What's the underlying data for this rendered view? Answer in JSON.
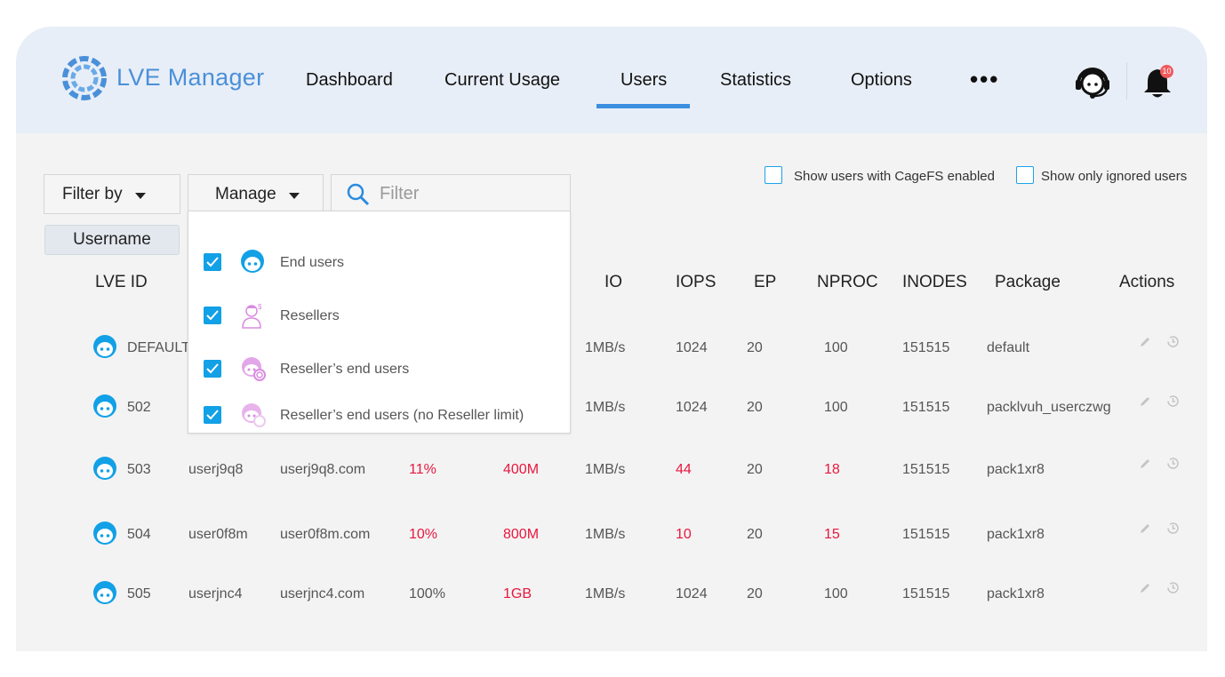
{
  "app": {
    "title": "LVE Manager"
  },
  "nav": {
    "items": [
      "Dashboard",
      "Current Usage",
      "Users",
      "Statistics",
      "Options"
    ],
    "active": "Users",
    "more": "•••"
  },
  "header": {
    "notifications_count": "10"
  },
  "colors": {
    "accent": "#3b8ee0",
    "checkbox": "#12a0e6",
    "alert": "#e8173f",
    "reseller_icon": "#d98be0"
  },
  "toolbar": {
    "filter_by": "Filter by",
    "manage": "Manage",
    "filter_placeholder": "Filter",
    "username_tag": "Username"
  },
  "options": {
    "cagefs": "Show users with CageFS enabled",
    "ignored": "Show only ignored users"
  },
  "manage_menu": {
    "items": [
      {
        "label": "End users",
        "checked": true,
        "icon": "end-user-icon"
      },
      {
        "label": "Resellers",
        "checked": true,
        "icon": "reseller-icon"
      },
      {
        "label": "Reseller’s end users",
        "checked": true,
        "icon": "reseller-end-user-icon"
      },
      {
        "label": "Reseller’s end users (no Reseller limit)",
        "checked": true,
        "icon": "reseller-end-user-nolimit-icon"
      }
    ]
  },
  "table": {
    "columns": {
      "lve_id": "LVE ID",
      "io": "IO",
      "iops": "IOPS",
      "ep": "EP",
      "nproc": "NPROC",
      "inodes": "INODES",
      "package": "Package",
      "actions": "Actions"
    },
    "rows": [
      {
        "id": "DEFAULT",
        "username": "",
        "domain": "",
        "cpu": "",
        "mem": "",
        "io": "1MB/s",
        "iops": "1024",
        "ep": "20",
        "nproc": "100",
        "inodes": "151515",
        "package": "default"
      },
      {
        "id": "502",
        "username": "",
        "domain": "",
        "cpu": "",
        "mem": "",
        "io": "1MB/s",
        "iops": "1024",
        "ep": "20",
        "nproc": "100",
        "inodes": "151515",
        "package": "packlvuh_userczwg"
      },
      {
        "id": "503",
        "username": "userj9q8",
        "domain": "userj9q8.com",
        "cpu": "11%",
        "mem": "400M",
        "io": "1MB/s",
        "iops": "44",
        "ep": "20",
        "nproc": "18",
        "inodes": "151515",
        "package": "pack1xr8"
      },
      {
        "id": "504",
        "username": "user0f8m",
        "domain": "user0f8m.com",
        "cpu": "10%",
        "mem": "800M",
        "io": "1MB/s",
        "iops": "10",
        "ep": "20",
        "nproc": "15",
        "inodes": "151515",
        "package": "pack1xr8"
      },
      {
        "id": "505",
        "username": "userjnc4",
        "domain": "userjnc4.com",
        "cpu": "100%",
        "mem": "1GB",
        "io": "1MB/s",
        "iops": "1024",
        "ep": "20",
        "nproc": "100",
        "inodes": "151515",
        "package": "pack1xr8"
      }
    ],
    "highlighted": {
      "2": [
        "cpu",
        "mem",
        "iops",
        "nproc"
      ],
      "3": [
        "cpu",
        "mem",
        "iops",
        "nproc"
      ],
      "4": [
        "mem"
      ]
    }
  }
}
